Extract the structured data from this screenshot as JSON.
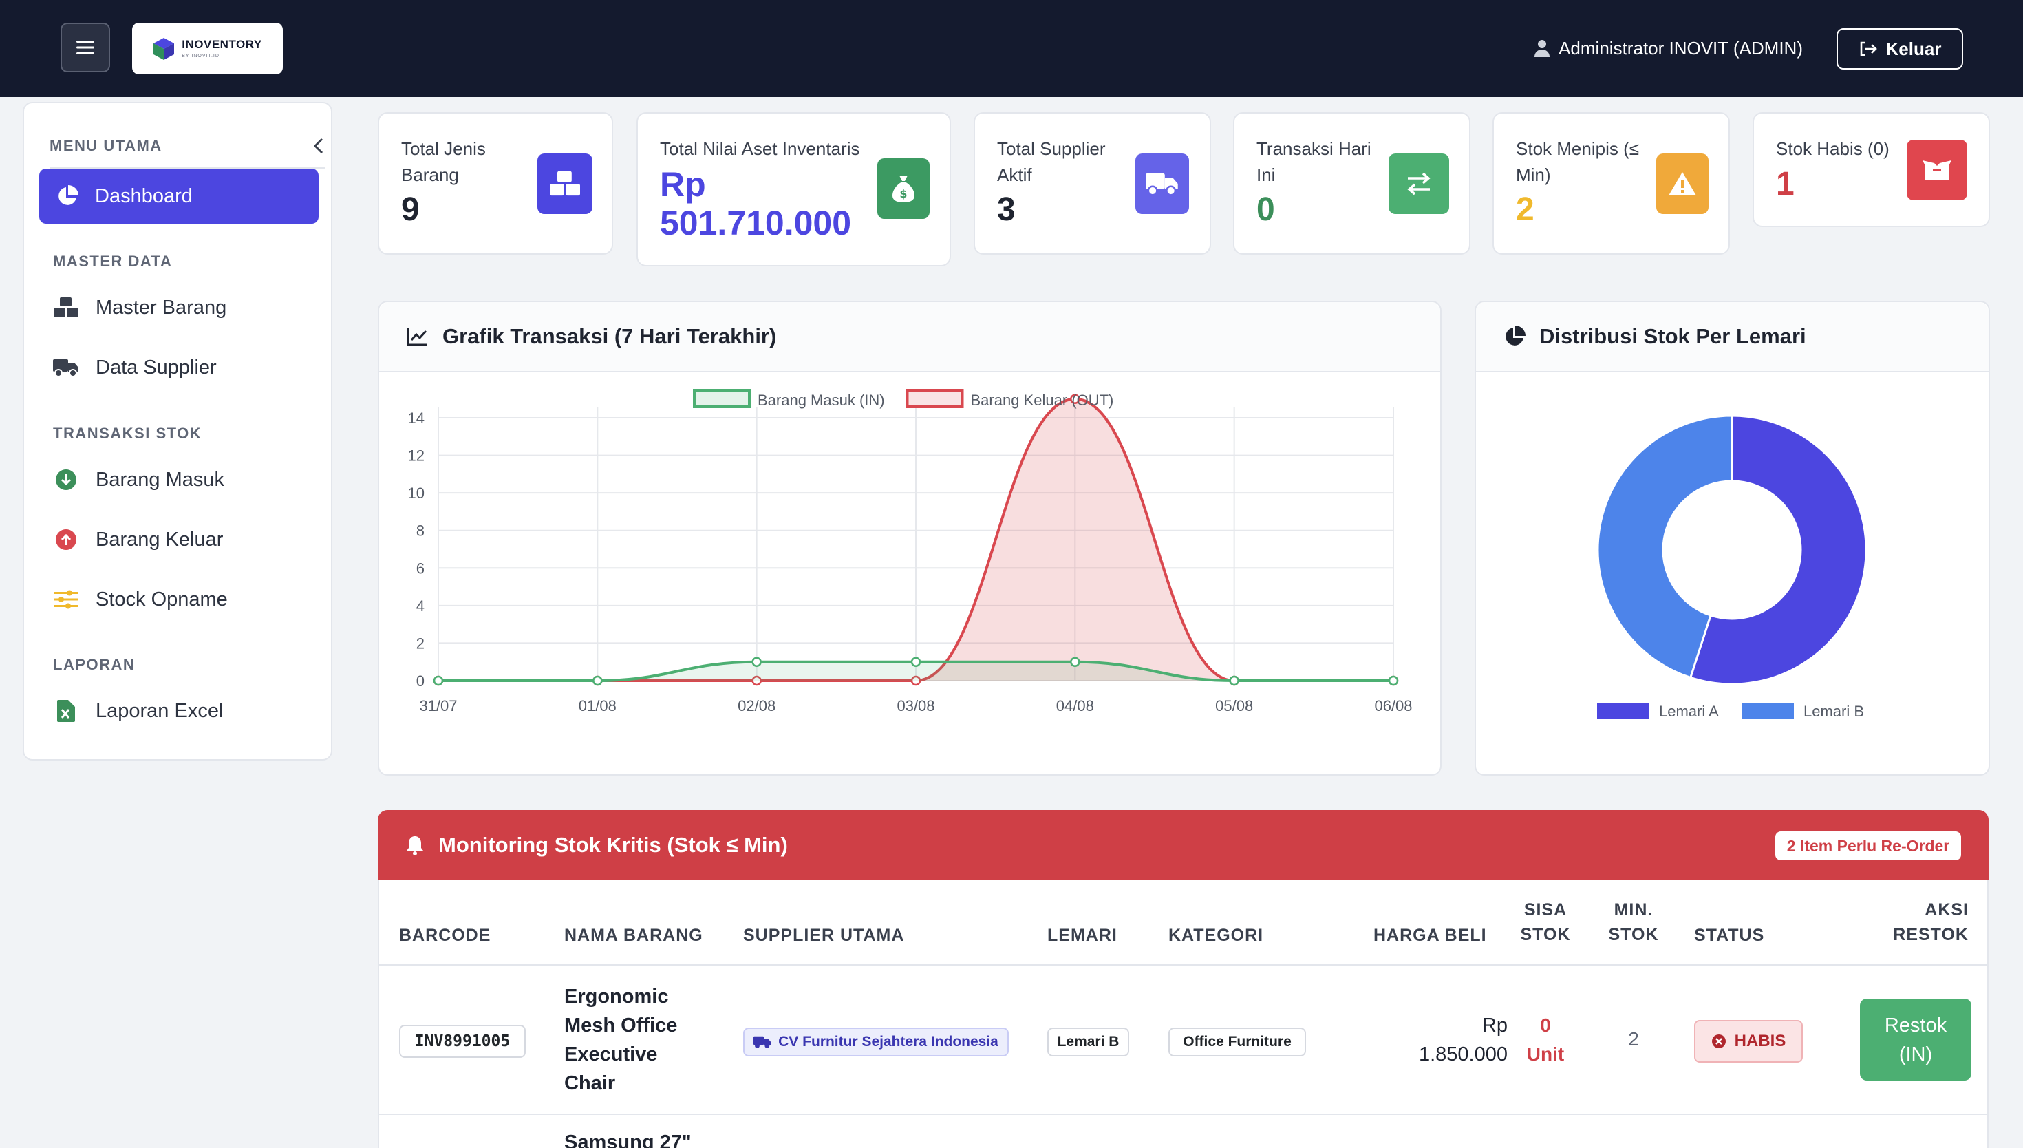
{
  "brand": {
    "name": "INOVENTORY",
    "sub": "BY INOVIT.ID"
  },
  "header": {
    "user": "Administrator INOVIT (ADMIN)",
    "logout_label": "Keluar"
  },
  "sidebar": {
    "title": "MENU UTAMA",
    "active_item": "Dashboard",
    "sections": [
      {
        "label": "MASTER DATA",
        "items": [
          "Master Barang",
          "Data Supplier"
        ]
      },
      {
        "label": "TRANSAKSI STOK",
        "items": [
          "Barang Masuk",
          "Barang Keluar",
          "Stock Opname"
        ]
      },
      {
        "label": "LAPORAN",
        "items": [
          "Laporan Excel"
        ]
      }
    ]
  },
  "stats": [
    {
      "label_1": "Total Jenis",
      "label_2": "Barang",
      "value": "9"
    },
    {
      "label_1": "Total Nilai Aset Inventaris",
      "value_1": "Rp",
      "value_2": "501.710.000"
    },
    {
      "label_1": "Total Supplier",
      "label_2": "Aktif",
      "value": "3"
    },
    {
      "label_1": "Transaksi Hari",
      "label_2": "Ini",
      "value": "0"
    },
    {
      "label_1": "Stok Menipis (≤",
      "label_2": "Min)",
      "value": "2"
    },
    {
      "label_1": "Stok Habis (0)",
      "value": "1"
    }
  ],
  "colors": {
    "primary": "#4c46e0",
    "success": "#4caf72",
    "danger": "#cf3f46",
    "warning": "#f0a93a",
    "purple": "#6563e8"
  },
  "line_panel": {
    "title": "Grafik Transaksi (7 Hari Terakhir)"
  },
  "pie_panel": {
    "title": "Distribusi Stok Per Lemari"
  },
  "chart_data": [
    {
      "type": "line",
      "title": "Grafik Transaksi (7 Hari Terakhir)",
      "x": [
        "31/07",
        "01/08",
        "02/08",
        "03/08",
        "04/08",
        "05/08",
        "06/08"
      ],
      "ylim": [
        0,
        15
      ],
      "yticks": [
        0,
        2,
        4,
        6,
        8,
        10,
        12,
        14
      ],
      "legend": "top",
      "grid": true,
      "series": [
        {
          "name": "Barang Masuk (IN)",
          "values": [
            0,
            0,
            1,
            1,
            1,
            0,
            0
          ],
          "color": "#4caf72"
        },
        {
          "name": "Barang Keluar (OUT)",
          "values": [
            0,
            0,
            0,
            0,
            15,
            0,
            0
          ],
          "color": "#d9484f"
        }
      ]
    },
    {
      "type": "pie",
      "title": "Distribusi Stok Per Lemari",
      "categories": [
        "Lemari A",
        "Lemari B"
      ],
      "values": [
        55,
        45
      ],
      "colors": [
        "#4c46e0",
        "#4d84ea"
      ],
      "legend": "bottom"
    }
  ],
  "monitoring": {
    "title": "Monitoring Stok Kritis (Stok ≤ Min)",
    "badge": "2 Item Perlu Re-Order",
    "columns": [
      "BARCODE",
      "NAMA BARANG",
      "SUPPLIER UTAMA",
      "LEMARI",
      "KATEGORI",
      "HARGA BELI",
      "SISA",
      "STOK",
      "MIN.",
      "STOK",
      "STATUS",
      "AKSI",
      "RESTOK"
    ],
    "rows": [
      {
        "barcode": "INV8991005",
        "name_lines": [
          "Ergonomic",
          "Mesh Office",
          "Executive",
          "Chair"
        ],
        "supplier": "CV Furnitur Sejahtera Indonesia",
        "lemari": "Lemari B",
        "kategori": "Office Furniture",
        "harga_1": "Rp",
        "harga_2": "1.850.000",
        "sisa_1": "0",
        "sisa_2": "Unit",
        "min": "2",
        "status": "HABIS",
        "aksi_1": "Restok",
        "aksi_2": "(IN)"
      },
      {
        "name_partial": "Samsung 27\""
      }
    ]
  }
}
